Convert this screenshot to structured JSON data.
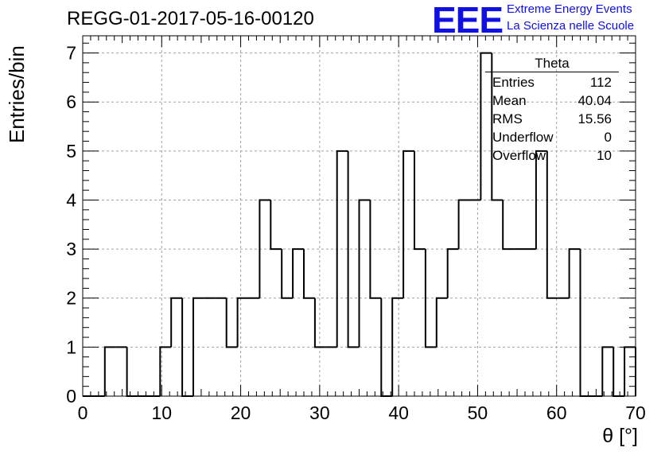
{
  "chart_data": {
    "type": "histogram",
    "title": "REGG-01-2017-05-16-00120",
    "xlabel": "θ [°]",
    "ylabel": "Entries/bin",
    "xlim": [
      0,
      70
    ],
    "ylim": [
      0,
      7.35
    ],
    "xticks": [
      0,
      10,
      20,
      30,
      40,
      50,
      60,
      70
    ],
    "yticks": [
      0,
      1,
      2,
      3,
      4,
      5,
      6,
      7
    ],
    "grid": true,
    "bin_edges": [
      0,
      1.4,
      2.8,
      4.2,
      5.6,
      7,
      8.4,
      9.8,
      11.2,
      12.6,
      14,
      15.4,
      16.8,
      18.2,
      19.6,
      21,
      22.4,
      23.8,
      25.2,
      26.6,
      28,
      29.4,
      30.8,
      32.2,
      33.6,
      35,
      36.4,
      37.8,
      39.2,
      40.6,
      42,
      43.4,
      44.8,
      46.2,
      47.6,
      49,
      50.4,
      51.8,
      53.2,
      54.6,
      56,
      57.4,
      58.8,
      60.2,
      61.6,
      63,
      64.4,
      65.8,
      67.2,
      68.6,
      70
    ],
    "counts": [
      0,
      0,
      1,
      1,
      0,
      0,
      0,
      1,
      2,
      0,
      2,
      2,
      2,
      1,
      2,
      2,
      4,
      3,
      2,
      3,
      2,
      1,
      1,
      5,
      1,
      4,
      2,
      0,
      2,
      5,
      3,
      1,
      2,
      3,
      4,
      4,
      7,
      4,
      3,
      3,
      3,
      5,
      2,
      2,
      3,
      0,
      0,
      1,
      0,
      1
    ],
    "stats": {
      "title": "Theta",
      "entries": [
        {
          "label": "Entries",
          "value": "112"
        },
        {
          "label": "Mean",
          "value": "40.04"
        },
        {
          "label": "RMS",
          "value": "15.56"
        },
        {
          "label": "Underflow",
          "value": "0"
        },
        {
          "label": "Overflow",
          "value": "10"
        }
      ]
    }
  },
  "logo": {
    "mark": "EEE",
    "line1": "Extreme Energy Events",
    "line2": "La Scienza nelle Scuole",
    "color": "#1010e0"
  }
}
